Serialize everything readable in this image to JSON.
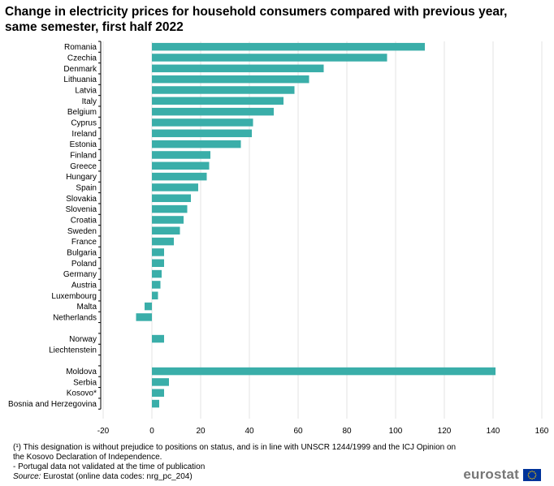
{
  "header": {
    "title": "Change in electricity prices for household consumers compared with previous year, same semester, first half 2022"
  },
  "chart_data": {
    "type": "bar",
    "orientation": "horizontal",
    "title": "Change in electricity prices for household consumers compared with previous year, same semester, first half 2022",
    "xlabel": "",
    "ylabel": "",
    "xlim": [
      -20,
      160
    ],
    "xticks": [
      -20,
      0,
      20,
      40,
      60,
      80,
      100,
      120,
      140,
      160
    ],
    "grid": "vertical",
    "bar_color": "#3aaea9",
    "groups": [
      {
        "categories": [
          "Romania",
          "Czechia",
          "Denmark",
          "Lithuania",
          "Latvia",
          "Italy",
          "Belgium",
          "Cyprus",
          "Ireland",
          "Estonia",
          "Finland",
          "Greece",
          "Hungary",
          "Spain",
          "Slovakia",
          "Slovenia",
          "Croatia",
          "Sweden",
          "France",
          "Bulgaria",
          "Poland",
          "Germany",
          "Austria",
          "Luxembourg",
          "Malta",
          "Netherlands"
        ],
        "values": [
          112,
          96.5,
          70.5,
          64.5,
          58.5,
          54,
          50,
          41.5,
          41,
          36.5,
          24,
          23.5,
          22.5,
          19,
          16,
          14.5,
          13,
          11.5,
          9,
          5,
          5,
          4,
          3.5,
          2.5,
          -3,
          -6.5
        ]
      },
      {
        "categories": [
          "Norway",
          "Liechtenstein"
        ],
        "values": [
          5,
          0
        ]
      },
      {
        "categories": [
          "Moldova",
          "Serbia",
          "Kosovo*",
          "Bosnia and Herzegovina"
        ],
        "values": [
          141,
          7,
          5,
          3
        ]
      }
    ]
  },
  "footer": {
    "note_1": "(¹) This designation is without prejudice to positions on status, and is in line with UNSCR 1244/1999 and the ICJ Opinion on the Kosovo Declaration of Independence.",
    "note_2": "- Portugal data not validated at the time of publication",
    "source_label": "Source:",
    "source_text": " Eurostat (online data codes: nrg_pc_204)"
  },
  "brand": {
    "name": "eurostat",
    "flag_blue": "#003399",
    "flag_gold": "#ffcc00"
  }
}
